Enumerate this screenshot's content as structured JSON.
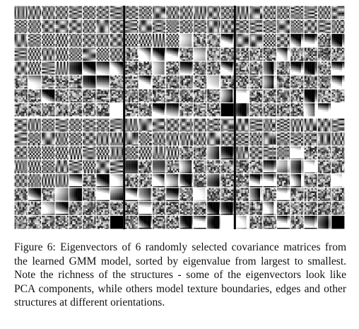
{
  "figure": {
    "label": "Figure 6:",
    "caption": "Eigenvectors of 6 randomly selected covariance matrices from the learned GMM model, sorted by eigenvalue from largest to smallest. Note the richness of the structures - some of the eigenvectors look like PCA components, while others model texture boundaries, edges and other structures at different orientations."
  },
  "grid": {
    "panel_columns": 3,
    "panel_rows": 2,
    "tiles_per_row": 8,
    "tiles_per_col": 8,
    "divider_color": "#000000",
    "white_tile_color": "#ffffff",
    "black_tile_color": "#000000"
  }
}
